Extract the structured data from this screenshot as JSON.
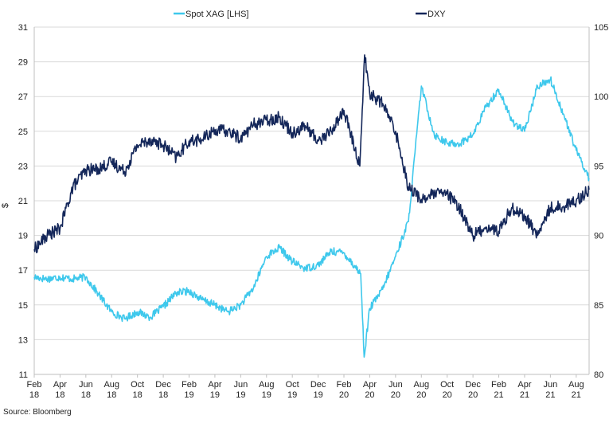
{
  "source": "Source: Bloomberg",
  "chart_data": {
    "type": "line",
    "ylabel": "$",
    "ylim_left": [
      11,
      31
    ],
    "yticks_left": [
      11,
      13,
      15,
      17,
      19,
      21,
      23,
      25,
      27,
      29,
      31
    ],
    "ylim_right": [
      80,
      105
    ],
    "yticks_right": [
      80,
      85,
      90,
      95,
      100,
      105
    ],
    "x_ticks": [
      {
        "top": "Feb",
        "bottom": "18"
      },
      {
        "top": "Apr",
        "bottom": "18"
      },
      {
        "top": "Jun",
        "bottom": "18"
      },
      {
        "top": "Aug",
        "bottom": "18"
      },
      {
        "top": "Oct",
        "bottom": "18"
      },
      {
        "top": "Dec",
        "bottom": "18"
      },
      {
        "top": "Feb",
        "bottom": "19"
      },
      {
        "top": "Apr",
        "bottom": "19"
      },
      {
        "top": "Jun",
        "bottom": "19"
      },
      {
        "top": "Aug",
        "bottom": "19"
      },
      {
        "top": "Oct",
        "bottom": "19"
      },
      {
        "top": "Dec",
        "bottom": "19"
      },
      {
        "top": "Feb",
        "bottom": "20"
      },
      {
        "top": "Apr",
        "bottom": "20"
      },
      {
        "top": "Jun",
        "bottom": "20"
      },
      {
        "top": "Aug",
        "bottom": "20"
      },
      {
        "top": "Oct",
        "bottom": "20"
      },
      {
        "top": "Dec",
        "bottom": "20"
      },
      {
        "top": "Feb",
        "bottom": "21"
      },
      {
        "top": "Apr",
        "bottom": "21"
      },
      {
        "top": "Jun",
        "bottom": "21"
      },
      {
        "top": "Aug",
        "bottom": "21"
      }
    ],
    "x_range": [
      "2018-02",
      "2021-09"
    ],
    "grid": true,
    "legend_position": "top",
    "series": [
      {
        "name": "Spot XAG [LHS]",
        "axis": "left",
        "color": "#3ec8ec",
        "x": [
          "2018-02",
          "2018-03",
          "2018-04",
          "2018-05",
          "2018-06",
          "2018-07",
          "2018-08",
          "2018-09",
          "2018-10",
          "2018-11",
          "2018-12",
          "2019-01",
          "2019-02",
          "2019-03",
          "2019-04",
          "2019-05",
          "2019-06",
          "2019-07",
          "2019-08",
          "2019-09",
          "2019-10",
          "2019-11",
          "2019-12",
          "2020-01",
          "2020-02",
          "2020-03-10",
          "2020-03-18",
          "2020-04",
          "2020-05",
          "2020-06",
          "2020-07",
          "2020-08",
          "2020-09",
          "2020-10",
          "2020-11",
          "2020-12",
          "2021-01",
          "2021-02",
          "2021-03",
          "2021-04",
          "2021-05",
          "2021-06",
          "2021-07",
          "2021-08",
          "2021-09"
        ],
        "values": [
          16.6,
          16.5,
          16.6,
          16.5,
          16.6,
          15.6,
          14.6,
          14.2,
          14.6,
          14.3,
          14.9,
          15.7,
          15.8,
          15.3,
          15.0,
          14.6,
          15.0,
          16.0,
          17.8,
          18.3,
          17.5,
          17.1,
          17.3,
          18.1,
          18.0,
          16.8,
          12.0,
          14.8,
          15.9,
          17.8,
          19.8,
          27.6,
          24.8,
          24.3,
          24.3,
          24.8,
          26.4,
          27.4,
          25.6,
          25.0,
          27.6,
          28.0,
          26.0,
          23.9,
          22.3
        ]
      },
      {
        "name": "DXY",
        "axis": "right",
        "color": "#14275a",
        "x": [
          "2018-02",
          "2018-03",
          "2018-04",
          "2018-05",
          "2018-06",
          "2018-07",
          "2018-08",
          "2018-09",
          "2018-10",
          "2018-11",
          "2018-12",
          "2019-01",
          "2019-02",
          "2019-03",
          "2019-04",
          "2019-05",
          "2019-06",
          "2019-07",
          "2019-08",
          "2019-09",
          "2019-10",
          "2019-11",
          "2019-12",
          "2020-01",
          "2020-02",
          "2020-03-08",
          "2020-03-19",
          "2020-04",
          "2020-05",
          "2020-06",
          "2020-07",
          "2020-08",
          "2020-09",
          "2020-10",
          "2020-11",
          "2020-12",
          "2021-01",
          "2021-02",
          "2021-03",
          "2021-04",
          "2021-05",
          "2021-06",
          "2021-07",
          "2021-08",
          "2021-09"
        ],
        "values": [
          89.0,
          90.0,
          90.5,
          93.5,
          94.7,
          94.8,
          95.3,
          94.6,
          96.5,
          96.9,
          96.5,
          95.6,
          96.8,
          96.9,
          97.6,
          97.5,
          97.0,
          98.0,
          98.3,
          98.5,
          97.4,
          97.9,
          96.8,
          97.5,
          99.0,
          95.0,
          103.0,
          100.2,
          99.5,
          97.5,
          93.5,
          92.6,
          93.0,
          93.0,
          91.9,
          90.0,
          90.6,
          90.3,
          92.0,
          91.4,
          90.0,
          92.0,
          92.1,
          92.5,
          93.3
        ]
      }
    ]
  }
}
